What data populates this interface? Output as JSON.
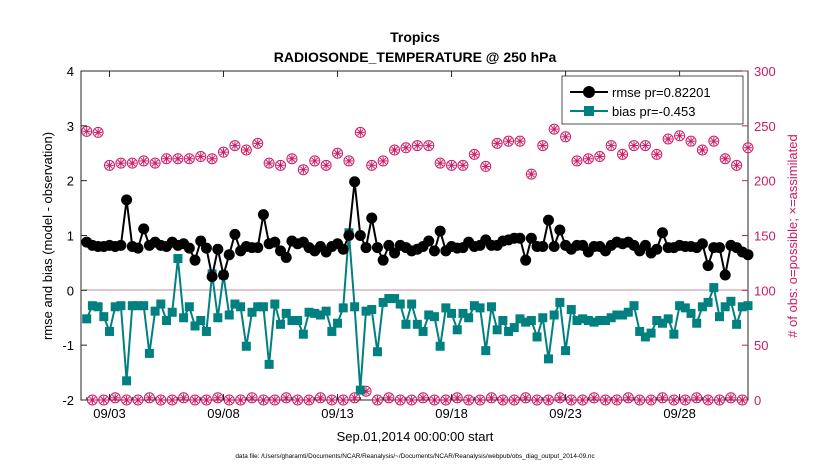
{
  "chart_data": {
    "type": "line",
    "title": "Tropics",
    "subtitle": "RADIOSONDE_TEMPERATURE @ 250 hPa",
    "xlabel": "Sep.01,2014 00:00:00 start",
    "ylabel_left": "rmse and bias (model - observation)",
    "ylabel_right": "# of obs: o=possible; ×=assimilated",
    "footnote": "data file: /Users/gharamti/Documents/NCAR/Reanalysis/~/Documents/NCAR/Reanalysis/webpub/obs_diag_output_2014-09.nc",
    "x_ticks": [
      "09/03",
      "09/08",
      "09/13",
      "09/18",
      "09/23",
      "09/28"
    ],
    "x_tick_days": [
      3,
      8,
      13,
      18,
      23,
      28
    ],
    "xlim": [
      1.75,
      31.0
    ],
    "ylim_left": [
      -2,
      4
    ],
    "yticks_left": [
      "4",
      "3",
      "2",
      "1",
      "0",
      "-1",
      "-2"
    ],
    "ylim_right": [
      0,
      300
    ],
    "yticks_right": [
      "300",
      "250",
      "200",
      "150",
      "100",
      "50",
      "0"
    ],
    "legend": [
      {
        "label": "rmse pr=0.82201",
        "color": "#000000",
        "marker": "circle"
      },
      {
        "label": "bias pr=-0.453",
        "color": "#008080",
        "marker": "square"
      }
    ],
    "legend_position": "top-right",
    "colors": {
      "rmse": "#000000",
      "bias": "#008080",
      "obs": "#cc1a66",
      "zero_line": "#c8a8b0"
    },
    "series": [
      {
        "name": "rmse",
        "axis": "left",
        "values": [
          0.88,
          0.82,
          0.8,
          0.8,
          0.82,
          0.8,
          0.82,
          1.65,
          0.8,
          0.77,
          1.12,
          0.82,
          0.88,
          0.82,
          0.8,
          0.88,
          0.82,
          0.85,
          0.77,
          0.55,
          0.9,
          0.77,
          0.25,
          0.75,
          0.28,
          0.65,
          1.02,
          0.72,
          0.8,
          0.78,
          0.78,
          1.38,
          0.85,
          0.88,
          0.72,
          0.6,
          0.9,
          0.85,
          0.88,
          0.78,
          0.72,
          0.8,
          0.7,
          0.8,
          0.85,
          0.75,
          1.0,
          1.98,
          1.0,
          0.78,
          1.32,
          0.78,
          0.55,
          0.82,
          0.68,
          0.82,
          0.78,
          0.72,
          0.75,
          0.8,
          0.9,
          0.72,
          1.08,
          0.72,
          0.8,
          0.77,
          0.78,
          0.88,
          0.8,
          0.82,
          0.92,
          0.82,
          0.82,
          0.9,
          0.92,
          0.95,
          0.95,
          0.55,
          0.95,
          0.8,
          0.8,
          1.28,
          0.8,
          1.1,
          0.82,
          0.75,
          0.82,
          0.82,
          0.7,
          0.8,
          0.8,
          0.72,
          0.82,
          0.88,
          0.85,
          0.88,
          0.82,
          0.72,
          0.82,
          0.68,
          0.75,
          1.05,
          0.78,
          0.78,
          0.82,
          0.8,
          0.8,
          0.78,
          0.85,
          0.45,
          0.78,
          0.78,
          0.28,
          0.82,
          0.78,
          0.7,
          0.65,
          0.75,
          0.68,
          0.45
        ]
      },
      {
        "name": "bias",
        "axis": "left",
        "values": [
          -0.52,
          -0.28,
          -0.3,
          -0.48,
          -0.75,
          -0.3,
          -0.28,
          -1.65,
          -0.28,
          -0.28,
          -0.28,
          -1.15,
          -0.38,
          -0.25,
          -0.55,
          -0.4,
          0.58,
          -0.5,
          -0.3,
          -0.65,
          -0.55,
          -0.75,
          0.3,
          -0.5,
          0.28,
          -0.45,
          -0.25,
          -0.3,
          -1.02,
          -0.4,
          -0.3,
          -0.3,
          -1.35,
          -0.25,
          -0.62,
          -0.42,
          -0.55,
          -0.55,
          -0.8,
          -0.4,
          -0.42,
          -0.45,
          -0.38,
          -0.75,
          -0.6,
          -0.32,
          1.05,
          -0.3,
          -1.82,
          -0.38,
          -0.35,
          -1.12,
          -0.22,
          -0.15,
          -0.15,
          -0.25,
          -0.62,
          -0.25,
          -0.62,
          -0.75,
          -0.45,
          -0.48,
          -1.02,
          -0.32,
          -0.42,
          -0.72,
          -0.42,
          -0.5,
          -0.28,
          -0.32,
          -1.1,
          -0.3,
          -0.72,
          -0.55,
          -0.75,
          -0.68,
          -0.52,
          -0.58,
          -0.55,
          -0.85,
          -0.5,
          -1.25,
          -0.45,
          -0.22,
          -1.1,
          -0.35,
          -0.55,
          -0.52,
          -0.55,
          -0.58,
          -0.55,
          -0.55,
          -0.5,
          -0.45,
          -0.45,
          -0.4,
          -0.28,
          -0.75,
          -0.85,
          -0.78,
          -0.55,
          -0.6,
          -0.52,
          -0.8,
          -0.28,
          -0.32,
          -0.42,
          -0.6,
          -0.3,
          -0.22,
          0.05,
          -0.48,
          -0.3,
          -0.2,
          -0.62,
          -0.3,
          -0.28,
          -0.3,
          -0.28,
          -0.42
        ]
      },
      {
        "name": "obs_possible",
        "axis": "right",
        "values": [
          245,
          243,
          244,
          210,
          214,
          216,
          216,
          216,
          216,
          216,
          218,
          213,
          216,
          240,
          220,
          219,
          220,
          196,
          220,
          222,
          222,
          218,
          220,
          200,
          226,
          233,
          232,
          232,
          228,
          196,
          234,
          236,
          216,
          234,
          214,
          220,
          220,
          220,
          210,
          218,
          218,
          228,
          214,
          213,
          225,
          228,
          218,
          218,
          244,
          248,
          214,
          213,
          218,
          218,
          228,
          213,
          230,
          202,
          232,
          198,
          232,
          232,
          216,
          216,
          214,
          213,
          214,
          236,
          224,
          213,
          213,
          222,
          234,
          238,
          236,
          204,
          236,
          240,
          206,
          234,
          232,
          230,
          247,
          238,
          240,
          216,
          218,
          206,
          220,
          222,
          222,
          206,
          232,
          230,
          224,
          226,
          232,
          216,
          232,
          224,
          224,
          238,
          238,
          244,
          241,
          238,
          236,
          230,
          228,
          228,
          236,
          212,
          220,
          234,
          214,
          214,
          230,
          225,
          222,
          232
        ]
      },
      {
        "name": "obs_assimilated",
        "axis": "right",
        "values": [
          245,
          243,
          244,
          210,
          214,
          216,
          216,
          216,
          216,
          216,
          218,
          213,
          216,
          240,
          220,
          219,
          220,
          196,
          220,
          222,
          222,
          218,
          220,
          200,
          226,
          233,
          232,
          232,
          228,
          196,
          234,
          236,
          216,
          234,
          214,
          220,
          220,
          220,
          210,
          218,
          218,
          228,
          214,
          213,
          225,
          228,
          218,
          218,
          244,
          248,
          214,
          213,
          218,
          218,
          228,
          213,
          230,
          202,
          232,
          198,
          232,
          232,
          216,
          216,
          214,
          213,
          214,
          236,
          224,
          213,
          213,
          222,
          234,
          238,
          236,
          204,
          236,
          240,
          206,
          234,
          232,
          230,
          247,
          238,
          240,
          216,
          218,
          206,
          220,
          222,
          222,
          206,
          232,
          230,
          224,
          226,
          232,
          216,
          232,
          224,
          224,
          238,
          238,
          244,
          241,
          238,
          236,
          230,
          228,
          228,
          236,
          212,
          220,
          234,
          214,
          214,
          230,
          225,
          222,
          232
        ]
      },
      {
        "name": "obs_possible_low",
        "axis": "right",
        "values": [
          0,
          0,
          2,
          0,
          0,
          2,
          0,
          0,
          2,
          0,
          0,
          2,
          0,
          0,
          2,
          0,
          0,
          2,
          0,
          0,
          2,
          0,
          0,
          2,
          0,
          0,
          2,
          0,
          0,
          2,
          0,
          0,
          2,
          0,
          0,
          2,
          0,
          0,
          2,
          0,
          0,
          2,
          0,
          0,
          2,
          0,
          0,
          2,
          0,
          8,
          2,
          0,
          0,
          2,
          0,
          0,
          2,
          0,
          0,
          2,
          0,
          0,
          2,
          0,
          0,
          2,
          0,
          0,
          2,
          0,
          0,
          2,
          0,
          0,
          2,
          0,
          0,
          2,
          0,
          0,
          2,
          0,
          0,
          2,
          0,
          0,
          2,
          0,
          0,
          2,
          0,
          0,
          2,
          0,
          0,
          2,
          0,
          0,
          2,
          0,
          0,
          2,
          0,
          0,
          2,
          0,
          0,
          2,
          0,
          0,
          2,
          0,
          0,
          2,
          0,
          0,
          2,
          0,
          0,
          0
        ]
      },
      {
        "name": "obs_assimilated_low",
        "axis": "right",
        "values": [
          0,
          0,
          2,
          0,
          0,
          2,
          0,
          0,
          2,
          0,
          0,
          2,
          0,
          0,
          2,
          0,
          0,
          2,
          0,
          0,
          2,
          0,
          0,
          2,
          0,
          0,
          2,
          0,
          0,
          2,
          0,
          0,
          2,
          0,
          0,
          2,
          0,
          0,
          2,
          0,
          0,
          2,
          0,
          0,
          2,
          0,
          0,
          2,
          0,
          8,
          2,
          0,
          0,
          2,
          0,
          0,
          2,
          0,
          0,
          2,
          0,
          0,
          2,
          0,
          0,
          2,
          0,
          0,
          2,
          0,
          0,
          2,
          0,
          0,
          2,
          0,
          0,
          2,
          0,
          0,
          2,
          0,
          0,
          2,
          0,
          0,
          2,
          0,
          0,
          2,
          0,
          0,
          2,
          0,
          0,
          2,
          0,
          0,
          2,
          0,
          0,
          2,
          0,
          0,
          2,
          0,
          0,
          2,
          0,
          0,
          2,
          0,
          0,
          2,
          0,
          0,
          2,
          0,
          0,
          0
        ]
      }
    ]
  }
}
